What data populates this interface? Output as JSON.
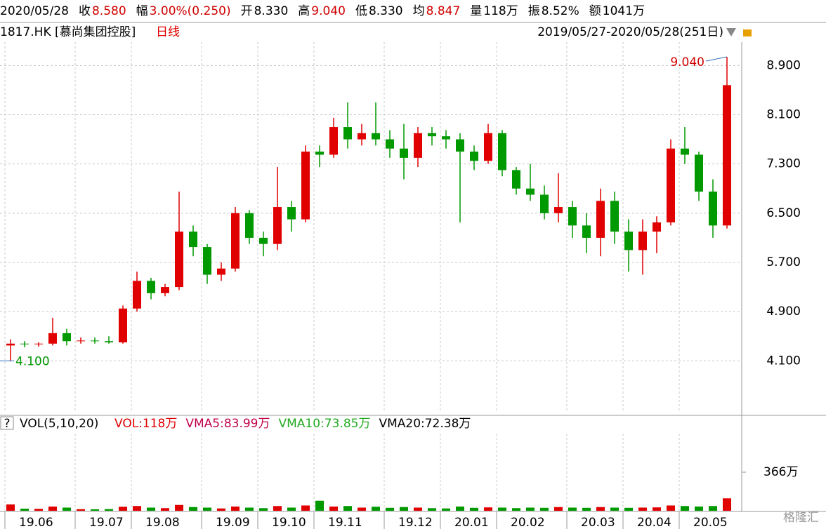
{
  "header": {
    "date": "2020/05/28",
    "items": [
      {
        "label": "收",
        "value": "8.580",
        "color": "#d00000"
      },
      {
        "label": "幅",
        "value": "3.00%(0.250)",
        "color": "#d00000"
      },
      {
        "label": "开",
        "value": "8.330",
        "color": "#000000"
      },
      {
        "label": "高",
        "value": "9.040",
        "color": "#d00000"
      },
      {
        "label": "低",
        "value": "8.330",
        "color": "#000000"
      },
      {
        "label": "均",
        "value": "8.847",
        "color": "#d00000"
      },
      {
        "label": "量",
        "value": "118万",
        "color": "#000000"
      },
      {
        "label": "振",
        "value": "8.52%",
        "color": "#000000"
      },
      {
        "label": "额",
        "value": "1041万",
        "color": "#000000"
      }
    ]
  },
  "chart_data": [
    {
      "type": "candlestick",
      "symbol": "1817.HK [慕尚集团控股]",
      "period": "日线",
      "range": "2019/05/27-2020/05/28(251日)",
      "up_color": "#e00000",
      "down_color": "#009900",
      "open": [
        4.35,
        4.38,
        4.37,
        4.38,
        4.55,
        4.42,
        4.43,
        4.42,
        4.4,
        4.95,
        5.4,
        5.2,
        5.3,
        6.2,
        5.95,
        5.5,
        5.6,
        6.5,
        6.1,
        6.0,
        6.6,
        6.4,
        7.5,
        7.45,
        7.9,
        7.7,
        7.8,
        7.7,
        7.55,
        7.4,
        7.8,
        7.75,
        7.7,
        7.5,
        7.35,
        7.8,
        7.2,
        6.9,
        6.8,
        6.5,
        6.6,
        6.3,
        6.1,
        6.7,
        6.2,
        5.9,
        6.2,
        6.35,
        7.55,
        7.45,
        6.85,
        6.3
      ],
      "high": [
        4.45,
        4.42,
        4.4,
        4.8,
        4.62,
        4.48,
        4.48,
        4.5,
        5.0,
        5.55,
        5.45,
        5.35,
        6.85,
        6.3,
        6.0,
        5.7,
        6.6,
        6.55,
        6.2,
        7.25,
        6.7,
        7.6,
        7.6,
        8.05,
        8.3,
        7.95,
        8.3,
        7.85,
        7.95,
        7.9,
        7.9,
        7.85,
        7.8,
        7.6,
        7.95,
        7.85,
        7.25,
        7.3,
        6.95,
        7.15,
        6.7,
        6.5,
        6.9,
        6.85,
        6.4,
        6.4,
        6.45,
        7.7,
        7.9,
        7.5,
        7.05,
        9.04
      ],
      "low": [
        4.1,
        4.32,
        4.33,
        4.35,
        4.35,
        4.38,
        4.38,
        4.38,
        4.38,
        4.9,
        5.1,
        5.15,
        5.25,
        5.8,
        5.35,
        5.4,
        5.55,
        6.0,
        5.8,
        5.9,
        6.2,
        6.35,
        7.25,
        7.4,
        7.55,
        7.6,
        7.6,
        7.4,
        7.05,
        7.25,
        7.6,
        7.55,
        6.35,
        7.2,
        7.3,
        7.1,
        6.8,
        6.7,
        6.4,
        6.35,
        6.1,
        5.85,
        5.8,
        6.0,
        5.55,
        5.5,
        5.85,
        6.3,
        7.3,
        6.7,
        6.1,
        6.25
      ],
      "close": [
        4.38,
        4.37,
        4.38,
        4.55,
        4.42,
        4.43,
        4.42,
        4.4,
        4.95,
        5.4,
        5.2,
        5.3,
        6.2,
        5.95,
        5.5,
        5.6,
        6.5,
        6.1,
        6.0,
        6.6,
        6.4,
        7.5,
        7.45,
        7.9,
        7.7,
        7.8,
        7.7,
        7.55,
        7.4,
        7.8,
        7.75,
        7.7,
        7.5,
        7.35,
        7.8,
        7.2,
        6.9,
        6.8,
        6.5,
        6.6,
        6.3,
        6.1,
        6.7,
        6.2,
        5.9,
        6.2,
        6.35,
        7.55,
        7.45,
        6.85,
        6.3,
        8.58
      ],
      "high_label": "9.040",
      "low_label": "4.100",
      "ylim": [
        3.26,
        9.28
      ],
      "yticks": [
        {
          "value": 4.1,
          "label": "4.100"
        },
        {
          "value": 4.9,
          "label": "4.900"
        },
        {
          "value": 5.7,
          "label": "5.700"
        },
        {
          "value": 6.5,
          "label": "6.500"
        },
        {
          "value": 7.3,
          "label": "7.300"
        },
        {
          "value": 8.1,
          "label": "8.100"
        },
        {
          "value": 8.9,
          "label": "8.900"
        }
      ],
      "xticks": [
        {
          "value": 0,
          "label": "19.06"
        },
        {
          "value": 5,
          "label": "19.07"
        },
        {
          "value": 9,
          "label": "19.08"
        },
        {
          "value": 14,
          "label": "19.09"
        },
        {
          "value": 18,
          "label": "19.10"
        },
        {
          "value": 22,
          "label": "19.11"
        },
        {
          "value": 27,
          "label": "19.12"
        },
        {
          "value": 31,
          "label": "20.01"
        },
        {
          "value": 35,
          "label": "20.02"
        },
        {
          "value": 40,
          "label": "20.03"
        },
        {
          "value": 44,
          "label": "20.04"
        },
        {
          "value": 48,
          "label": "20.05"
        }
      ],
      "grid": true
    },
    {
      "type": "volume",
      "title": "VOL(5,10,20)",
      "legend": [
        {
          "name": "VOL:118万",
          "color": "#e00000"
        },
        {
          "name": "VMA5:83.99万",
          "color": "#c0004a"
        },
        {
          "name": "VMA10:73.85万",
          "color": "#22aa22"
        },
        {
          "name": "VMA20:72.38万",
          "color": "#000000"
        }
      ],
      "values": [
        60,
        20,
        18,
        40,
        30,
        15,
        14,
        16,
        38,
        45,
        30,
        25,
        55,
        35,
        30,
        22,
        40,
        30,
        25,
        45,
        30,
        50,
        95,
        40,
        45,
        30,
        38,
        28,
        35,
        30,
        25,
        22,
        40,
        28,
        32,
        30,
        25,
        30,
        28,
        35,
        30,
        28,
        35,
        30,
        28,
        30,
        32,
        50,
        45,
        40,
        45,
        118
      ],
      "ylim": [
        0,
        732
      ],
      "yticks": [
        {
          "value": 366,
          "label": "366万"
        }
      ]
    }
  ],
  "watermark": "格隆汇"
}
